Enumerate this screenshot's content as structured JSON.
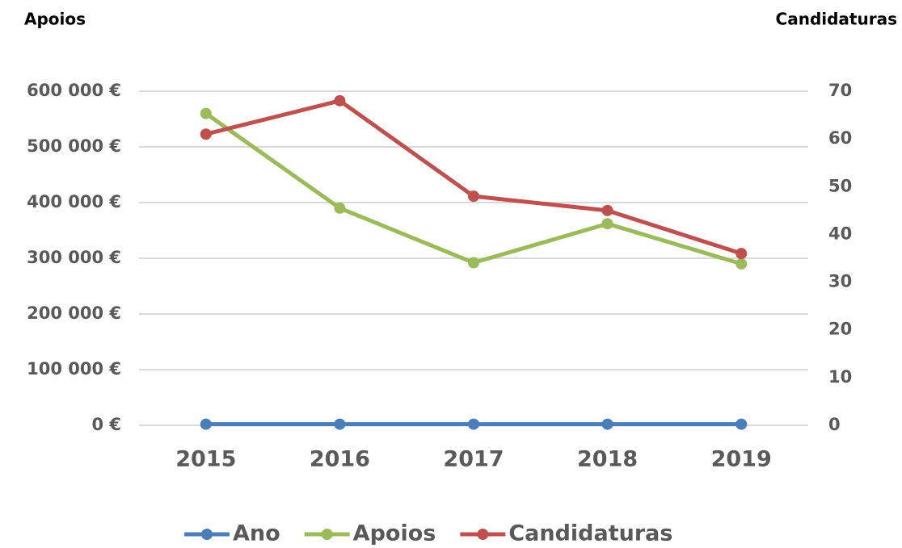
{
  "chart_data": {
    "type": "line",
    "y_label": "Apoios",
    "y2_label": "Candidaturas",
    "categories": [
      "2015",
      "2016",
      "2017",
      "2018",
      "2019"
    ],
    "series": [
      {
        "name": "Ano",
        "color": "#4a7ebb",
        "values": [
          2015,
          2016,
          2017,
          2018,
          2019
        ]
      },
      {
        "name": "Apoios",
        "color": "#9bbb59",
        "values": [
          560000,
          390000,
          292000,
          362000,
          290000
        ]
      },
      {
        "name": "Candidaturas",
        "color": "#c0504d",
        "axis": "y2",
        "values": [
          61,
          68,
          48,
          45,
          36
        ]
      }
    ],
    "ylim": [
      0,
      600000
    ],
    "yticks": [
      {
        "value": 0,
        "label": "0 €"
      },
      {
        "value": 100000,
        "label": "100 000 €"
      },
      {
        "value": 200000,
        "label": "200 000 €"
      },
      {
        "value": 300000,
        "label": "300 000 €"
      },
      {
        "value": 400000,
        "label": "400 000 €"
      },
      {
        "value": 500000,
        "label": "500 000 €"
      },
      {
        "value": 600000,
        "label": "600 000 €"
      }
    ],
    "y2lim": [
      0,
      70
    ],
    "y2ticks": [
      0,
      10,
      20,
      30,
      40,
      50,
      60,
      70
    ],
    "grid": true,
    "legend": "bottom"
  }
}
